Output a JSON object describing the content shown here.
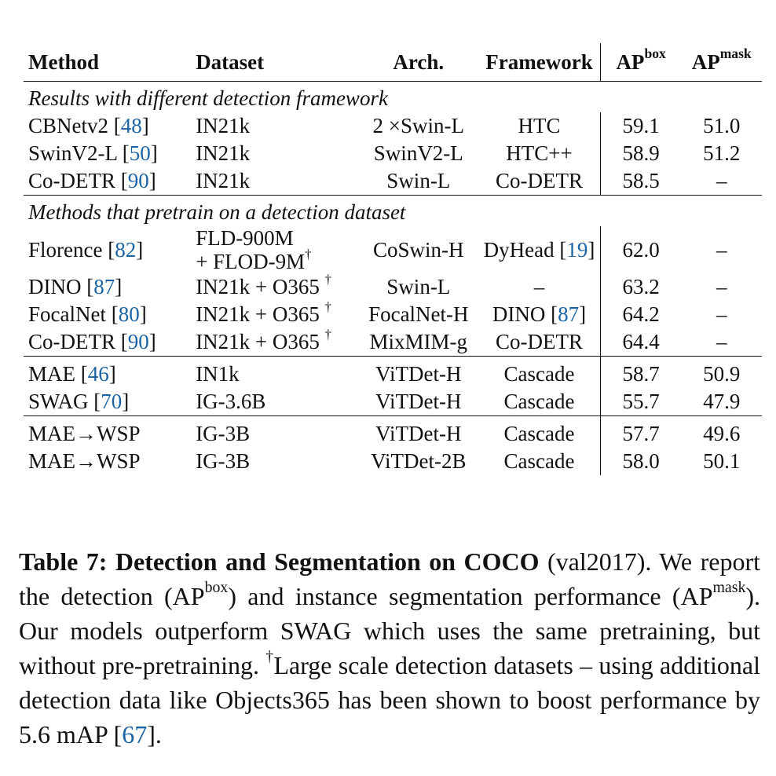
{
  "table": {
    "headers": {
      "method": "Method",
      "dataset": "Dataset",
      "arch": "Arch.",
      "framework": "Framework",
      "ap_box": "AP",
      "ap_box_sup": "box",
      "ap_mask": "AP",
      "ap_mask_sup": "mask"
    },
    "sections": [
      {
        "title": "Results with different detection framework",
        "rows": [
          {
            "method": "CBNetv2",
            "method_cite": "48",
            "dataset": "IN21k",
            "arch": "2 ×Swin-L",
            "framework": "HTC",
            "ap_box": "59.1",
            "ap_mask": "51.0"
          },
          {
            "method": "SwinV2-L",
            "method_cite": "50",
            "dataset": "IN21k",
            "arch": "SwinV2-L",
            "framework": "HTC++",
            "ap_box": "58.9",
            "ap_mask": "51.2"
          },
          {
            "method": "Co-DETR",
            "method_cite": "90",
            "dataset": "IN21k",
            "arch": "Swin-L",
            "framework": "Co-DETR",
            "ap_box": "58.5",
            "ap_mask": "–"
          }
        ]
      },
      {
        "title": "Methods that pretrain on a detection dataset",
        "rows": [
          {
            "method": "Florence",
            "method_cite": "82",
            "dataset_line1": "FLD-900M",
            "dataset_line2": "+ FLOD-9M",
            "dagger": "†",
            "arch": "CoSwin-H",
            "framework": "DyHead",
            "framework_cite": "19",
            "ap_box": "62.0",
            "ap_mask": "–"
          },
          {
            "method": "DINO",
            "method_cite": "87",
            "dataset": "IN21k + O365",
            "dagger": "†",
            "arch": "Swin-L",
            "framework": "–",
            "ap_box": "63.2",
            "ap_mask": "–"
          },
          {
            "method": "FocalNet",
            "method_cite": "80",
            "dataset": "IN21k + O365",
            "dagger": "†",
            "arch": "FocalNet-H",
            "framework": "DINO",
            "framework_cite": "87",
            "ap_box": "64.2",
            "ap_mask": "–"
          },
          {
            "method": "Co-DETR",
            "method_cite": "90",
            "dataset": "IN21k + O365",
            "dagger": "†",
            "arch": "MixMIM-g",
            "framework": "Co-DETR",
            "ap_box": "64.4",
            "ap_mask": "–"
          }
        ]
      },
      {
        "rows": [
          {
            "method": "MAE",
            "method_cite": "46",
            "dataset": "IN1k",
            "arch": "ViTDet-H",
            "framework": "Cascade",
            "ap_box": "58.7",
            "ap_mask": "50.9"
          },
          {
            "method": "SWAG",
            "method_cite": "70",
            "dataset": "IG-3.6B",
            "arch": "ViTDet-H",
            "framework": "Cascade",
            "ap_box": "55.7",
            "ap_mask": "47.9"
          }
        ]
      },
      {
        "rows": [
          {
            "method": "MAE→WSP",
            "dataset": "IG-3B",
            "arch": "ViTDet-H",
            "framework": "Cascade",
            "ap_box": "57.7",
            "ap_mask": "49.6"
          },
          {
            "method": "MAE→WSP",
            "dataset": "IG-3B",
            "arch": "ViTDet-2B",
            "framework": "Cascade",
            "ap_box": "58.0",
            "ap_mask": "50.1"
          }
        ]
      }
    ]
  },
  "caption": {
    "label": "Table 7: Detection and Segmentation on COCO",
    "p1": " (val2017). We report the detection (AP",
    "sup_box": "box",
    "p2": ") and instance segmentation performance (AP",
    "sup_mask": "mask",
    "p3": "). Our models outperform SWAG which uses the same pretraining, but without pre-pretraining. ",
    "dagger": "†",
    "p4": "Large scale detection datasets – using additional detection data like Objects365 has been shown to boost performance by 5.6 mAP [",
    "cite": "67",
    "p5": "]."
  }
}
